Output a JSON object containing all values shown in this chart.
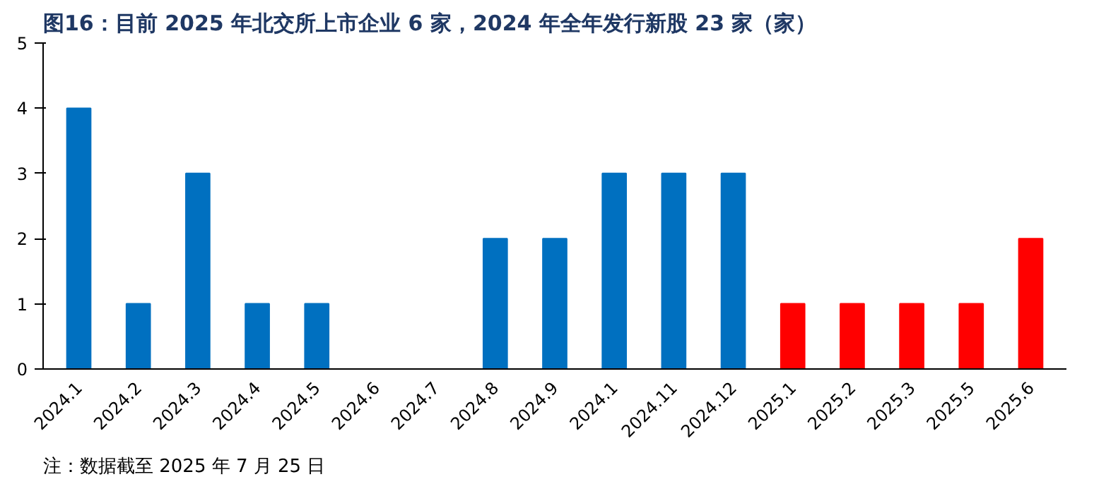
{
  "chart_data": {
    "type": "bar",
    "title": "图16：目前 2025 年北交所上市企业 6 家，2024 年全年发行新股 23 家（家）",
    "categories": [
      "2024.1",
      "2024.2",
      "2024.3",
      "2024.4",
      "2024.5",
      "2024.6",
      "2024.7",
      "2024.8",
      "2024.9",
      "2024.1",
      "2024.11",
      "2024.12",
      "2025.1",
      "2025.2",
      "2025.3",
      "2025.5",
      "2025.6"
    ],
    "values": [
      4,
      1,
      3,
      1,
      1,
      0,
      0,
      2,
      2,
      3,
      3,
      3,
      1,
      1,
      1,
      1,
      2
    ],
    "colors": [
      "#0070c0",
      "#0070c0",
      "#0070c0",
      "#0070c0",
      "#0070c0",
      "#0070c0",
      "#0070c0",
      "#0070c0",
      "#0070c0",
      "#0070c0",
      "#0070c0",
      "#0070c0",
      "#ff0000",
      "#ff0000",
      "#ff0000",
      "#ff0000",
      "#ff0000"
    ],
    "ylim": [
      0,
      5
    ],
    "yticks": [
      0,
      1,
      2,
      3,
      4,
      5
    ],
    "grid": false,
    "annotations": [
      "注：数据截至 2025 年 7 月 25 日"
    ]
  }
}
